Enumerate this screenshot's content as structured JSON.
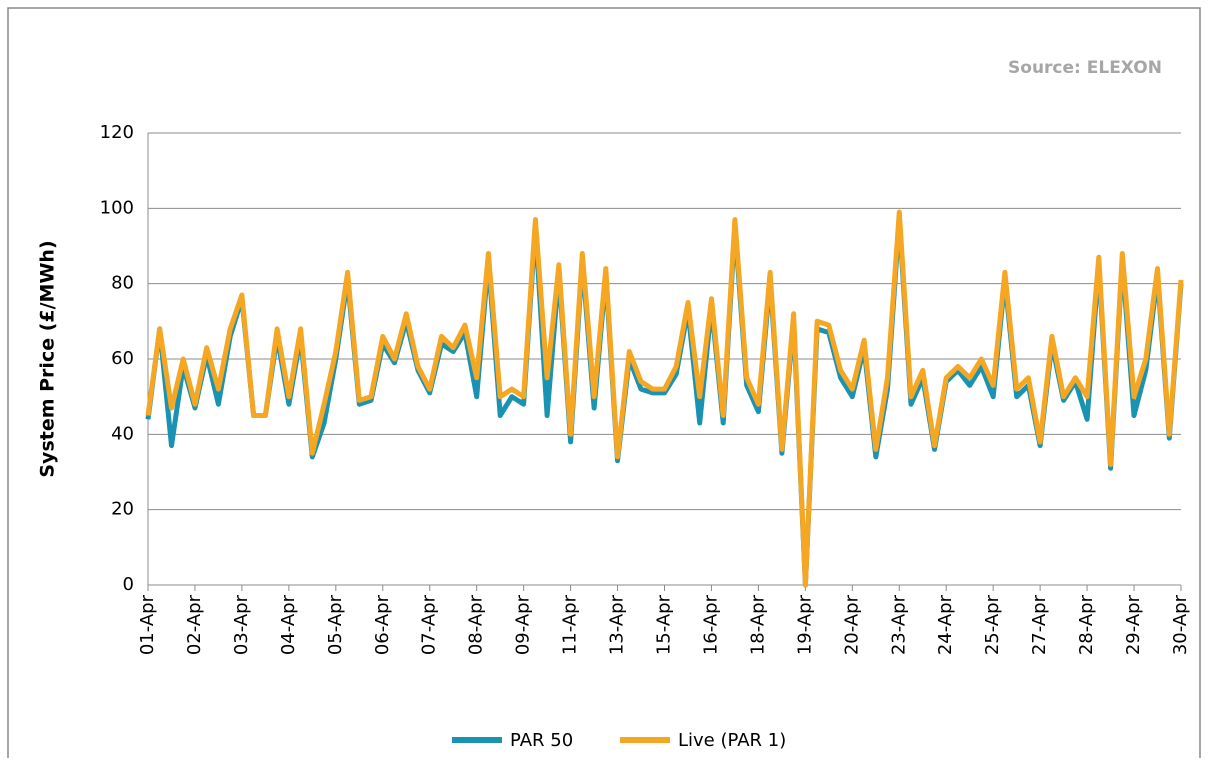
{
  "chart_data": {
    "type": "line",
    "annotation": "Source: ELEXON",
    "y_label": "System Price (£/MWh)",
    "categories": [
      "01-Apr",
      null,
      null,
      null,
      "02-Apr",
      null,
      null,
      null,
      "03-Apr",
      null,
      null,
      null,
      "04-Apr",
      null,
      null,
      null,
      "05-Apr",
      null,
      null,
      null,
      "06-Apr",
      null,
      null,
      null,
      "07-Apr",
      null,
      null,
      null,
      "08-Apr",
      null,
      null,
      null,
      "09-Apr",
      null,
      null,
      null,
      "11-Apr",
      null,
      null,
      null,
      "13-Apr",
      null,
      null,
      null,
      "15-Apr",
      null,
      null,
      null,
      "16-Apr",
      null,
      null,
      null,
      "18-Apr",
      null,
      null,
      null,
      "19-Apr",
      null,
      null,
      null,
      "20-Apr",
      null,
      null,
      null,
      "23-Apr",
      null,
      null,
      null,
      "24-Apr",
      null,
      null,
      null,
      "25-Apr",
      null,
      null,
      null,
      "27-Apr",
      null,
      null,
      null,
      "28-Apr",
      null,
      null,
      null,
      "29-Apr",
      null,
      null,
      null,
      "30-Apr"
    ],
    "series": [
      {
        "name": "PAR 50",
        "color": "#1a93b3",
        "values": [
          44,
          68,
          37,
          58,
          47,
          61,
          48,
          66,
          76,
          45,
          45,
          66,
          48,
          66,
          34,
          43,
          60,
          81,
          48,
          49,
          64,
          59,
          70,
          57,
          51,
          64,
          62,
          67,
          50,
          86,
          45,
          50,
          48,
          95,
          45,
          83,
          38,
          86,
          47,
          82,
          33,
          60,
          52,
          51,
          51,
          56,
          73,
          43,
          74,
          43,
          95,
          53,
          46,
          81,
          35,
          70,
          0,
          68,
          67,
          55,
          50,
          63,
          34,
          52,
          97,
          48,
          55,
          36,
          54,
          57,
          53,
          58,
          50,
          81,
          50,
          53,
          37,
          64,
          49,
          54,
          44,
          85,
          31,
          86,
          45,
          57,
          82,
          39,
          80
        ]
      },
      {
        "name": "Live (PAR 1)",
        "color": "#f5a623",
        "values": [
          45,
          68,
          47,
          60,
          48,
          63,
          52,
          68,
          77,
          45,
          45,
          68,
          50,
          68,
          35,
          48,
          62,
          83,
          49,
          50,
          66,
          60,
          72,
          58,
          52,
          66,
          63,
          69,
          55,
          88,
          50,
          52,
          50,
          97,
          55,
          85,
          40,
          88,
          50,
          84,
          34,
          62,
          54,
          52,
          52,
          58,
          75,
          50,
          76,
          45,
          97,
          55,
          48,
          83,
          36,
          72,
          0,
          70,
          69,
          57,
          52,
          65,
          36,
          55,
          99,
          50,
          57,
          37,
          55,
          58,
          55,
          60,
          53,
          83,
          52,
          55,
          38,
          66,
          50,
          55,
          50,
          87,
          32,
          88,
          50,
          60,
          84,
          40,
          81
        ]
      }
    ],
    "ylim": [
      0,
      120
    ],
    "yticks": [
      0,
      20,
      40,
      60,
      80,
      100,
      120
    ],
    "grid": true,
    "legend": "bottom"
  }
}
